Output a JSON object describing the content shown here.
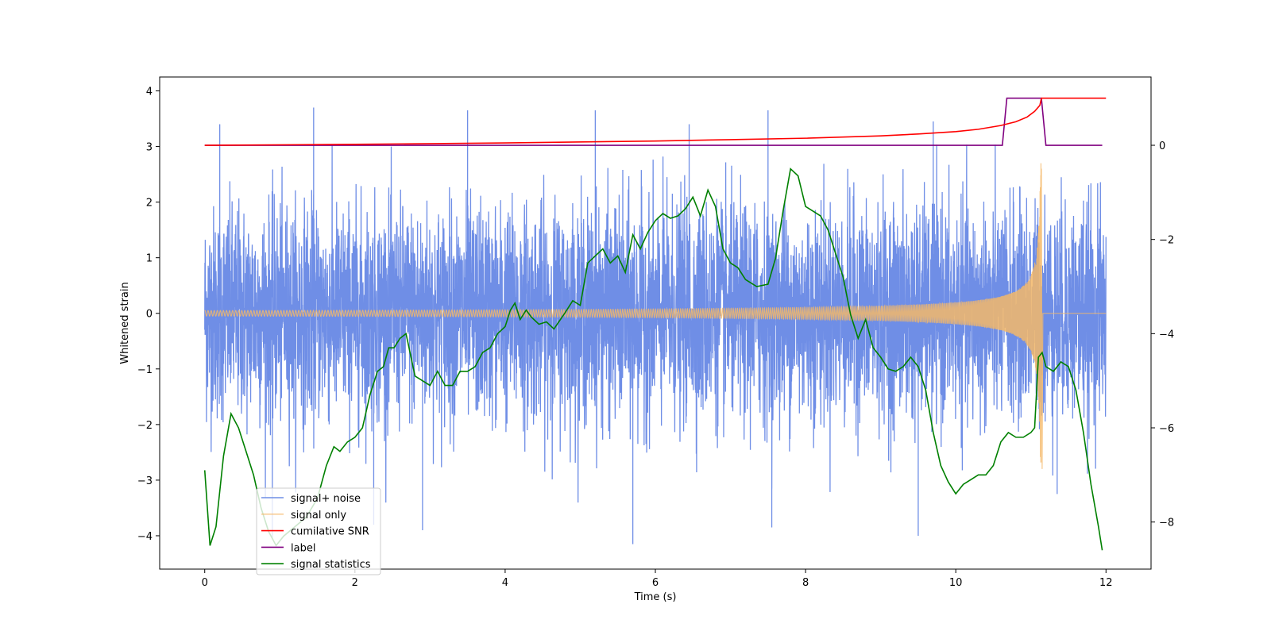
{
  "chart_data": {
    "type": "line",
    "xlabel": "Time (s)",
    "ylabel": "Whitened strain",
    "xlim": [
      -0.6,
      12.6
    ],
    "ylim": [
      -4.6,
      4.25
    ],
    "y2lim": [
      -9.0,
      1.45
    ],
    "x_ticks": [
      0,
      2,
      4,
      6,
      8,
      10,
      12
    ],
    "x_tick_labels": [
      "0",
      "2",
      "4",
      "6",
      "8",
      "10",
      "12"
    ],
    "y_ticks": [
      -4,
      -3,
      -2,
      -1,
      0,
      1,
      2,
      3,
      4
    ],
    "y_tick_labels": [
      "−4",
      "−3",
      "−2",
      "−1",
      "0",
      "1",
      "2",
      "3",
      "4"
    ],
    "y2_ticks": [
      -8,
      -6,
      -4,
      -2,
      0
    ],
    "y2_tick_labels": [
      "−8",
      "−6",
      "−4",
      "−2",
      "0"
    ],
    "colors": {
      "signal_noise": "#6f8ee6",
      "signal_only": "#f5b869",
      "cumulative_snr": "#ff0000",
      "label": "#800080",
      "statistics": "#008000"
    },
    "signal_noise": {
      "name": "signal+ noise",
      "axis": "left",
      "t_start": 0,
      "t_end": 12,
      "envelope_min": -4.15,
      "envelope_max": 3.7,
      "peaks": [
        {
          "x": 0.2,
          "y": 3.4
        },
        {
          "x": 1.45,
          "y": 3.7
        },
        {
          "x": 3.5,
          "y": 3.65
        },
        {
          "x": 5.2,
          "y": 3.65
        },
        {
          "x": 6.45,
          "y": 3.4
        },
        {
          "x": 7.5,
          "y": 3.65
        },
        {
          "x": 9.7,
          "y": 3.45
        },
        {
          "x": 0.9,
          "y": -4.05
        },
        {
          "x": 2.25,
          "y": -3.8
        },
        {
          "x": 2.9,
          "y": -3.9
        },
        {
          "x": 5.7,
          "y": -4.15
        },
        {
          "x": 7.55,
          "y": -3.85
        },
        {
          "x": 9.5,
          "y": -4.0
        },
        {
          "x": 11.35,
          "y": -3.25
        }
      ]
    },
    "signal_only": {
      "name": "signal only",
      "axis": "left",
      "t_merger": 11.14,
      "t_end": 12,
      "peak_amplitude": 2.7
    },
    "cumulative_snr": {
      "name": "cumilative SNR",
      "axis": "right",
      "x": [
        0,
        2,
        4,
        6,
        7,
        8,
        9,
        9.5,
        10,
        10.3,
        10.6,
        10.8,
        10.95,
        11.05,
        11.12,
        11.14,
        12
      ],
      "y": [
        0,
        0.02,
        0.05,
        0.09,
        0.12,
        0.15,
        0.2,
        0.24,
        0.29,
        0.34,
        0.42,
        0.5,
        0.6,
        0.72,
        0.85,
        1.0,
        1.0
      ]
    },
    "label": {
      "name": "label",
      "axis": "right",
      "x": [
        0,
        10.62,
        10.68,
        11.14,
        11.2,
        11.95
      ],
      "y": [
        0,
        0,
        1,
        1,
        0,
        0
      ]
    },
    "signal_statistics": {
      "name": "signal statistics",
      "axis": "right",
      "x": [
        0,
        0.07,
        0.15,
        0.25,
        0.35,
        0.45,
        0.55,
        0.65,
        0.75,
        0.85,
        0.95,
        1.05,
        1.2,
        1.35,
        1.5,
        1.62,
        1.72,
        1.8,
        1.9,
        2.0,
        2.1,
        2.2,
        2.3,
        2.38,
        2.45,
        2.52,
        2.6,
        2.68,
        2.8,
        2.9,
        3.0,
        3.1,
        3.2,
        3.3,
        3.4,
        3.5,
        3.6,
        3.7,
        3.8,
        3.9,
        4.0,
        4.07,
        4.13,
        4.2,
        4.28,
        4.35,
        4.45,
        4.55,
        4.65,
        4.8,
        4.9,
        5.0,
        5.1,
        5.2,
        5.3,
        5.4,
        5.5,
        5.6,
        5.7,
        5.8,
        5.9,
        6.0,
        6.1,
        6.2,
        6.3,
        6.4,
        6.5,
        6.6,
        6.7,
        6.8,
        6.9,
        7.0,
        7.1,
        7.2,
        7.35,
        7.5,
        7.6,
        7.7,
        7.8,
        7.9,
        8.0,
        8.1,
        8.2,
        8.3,
        8.4,
        8.5,
        8.6,
        8.7,
        8.8,
        8.9,
        9.0,
        9.1,
        9.2,
        9.3,
        9.4,
        9.5,
        9.6,
        9.7,
        9.8,
        9.9,
        10.0,
        10.1,
        10.2,
        10.3,
        10.4,
        10.5,
        10.6,
        10.7,
        10.8,
        10.9,
        11.0,
        11.05,
        11.1,
        11.15,
        11.2,
        11.3,
        11.4,
        11.5,
        11.6,
        11.7,
        11.8,
        11.9,
        11.95
      ],
      "y": [
        -6.9,
        -8.5,
        -8.1,
        -6.6,
        -5.7,
        -6.0,
        -6.5,
        -7.0,
        -7.7,
        -8.2,
        -8.5,
        -8.3,
        -8.1,
        -7.9,
        -7.5,
        -6.8,
        -6.4,
        -6.5,
        -6.3,
        -6.2,
        -6.0,
        -5.3,
        -4.8,
        -4.7,
        -4.3,
        -4.3,
        -4.1,
        -4.0,
        -4.9,
        -5.0,
        -5.1,
        -4.8,
        -5.1,
        -5.1,
        -4.8,
        -4.8,
        -4.7,
        -4.4,
        -4.3,
        -4.0,
        -3.85,
        -3.5,
        -3.35,
        -3.7,
        -3.5,
        -3.65,
        -3.8,
        -3.75,
        -3.9,
        -3.55,
        -3.3,
        -3.4,
        -2.5,
        -2.35,
        -2.2,
        -2.5,
        -2.35,
        -2.7,
        -1.9,
        -2.2,
        -1.85,
        -1.6,
        -1.45,
        -1.55,
        -1.5,
        -1.35,
        -1.1,
        -1.5,
        -0.95,
        -1.3,
        -2.2,
        -2.5,
        -2.6,
        -2.85,
        -3.0,
        -2.95,
        -2.4,
        -1.4,
        -0.5,
        -0.65,
        -1.3,
        -1.4,
        -1.5,
        -1.8,
        -2.3,
        -2.8,
        -3.6,
        -4.1,
        -3.7,
        -4.3,
        -4.5,
        -4.75,
        -4.8,
        -4.7,
        -4.5,
        -4.7,
        -5.2,
        -6.1,
        -6.8,
        -7.15,
        -7.4,
        -7.2,
        -7.1,
        -7.0,
        -7.0,
        -6.8,
        -6.3,
        -6.1,
        -6.2,
        -6.2,
        -6.1,
        -6.0,
        -4.5,
        -4.4,
        -4.7,
        -4.8,
        -4.6,
        -4.7,
        -5.2,
        -6.1,
        -7.2,
        -8.1,
        -8.6
      ]
    },
    "legend": {
      "placement": "lower-left",
      "entries": [
        "signal+ noise",
        "signal only",
        "cumilative SNR",
        "label",
        "signal statistics"
      ]
    }
  }
}
